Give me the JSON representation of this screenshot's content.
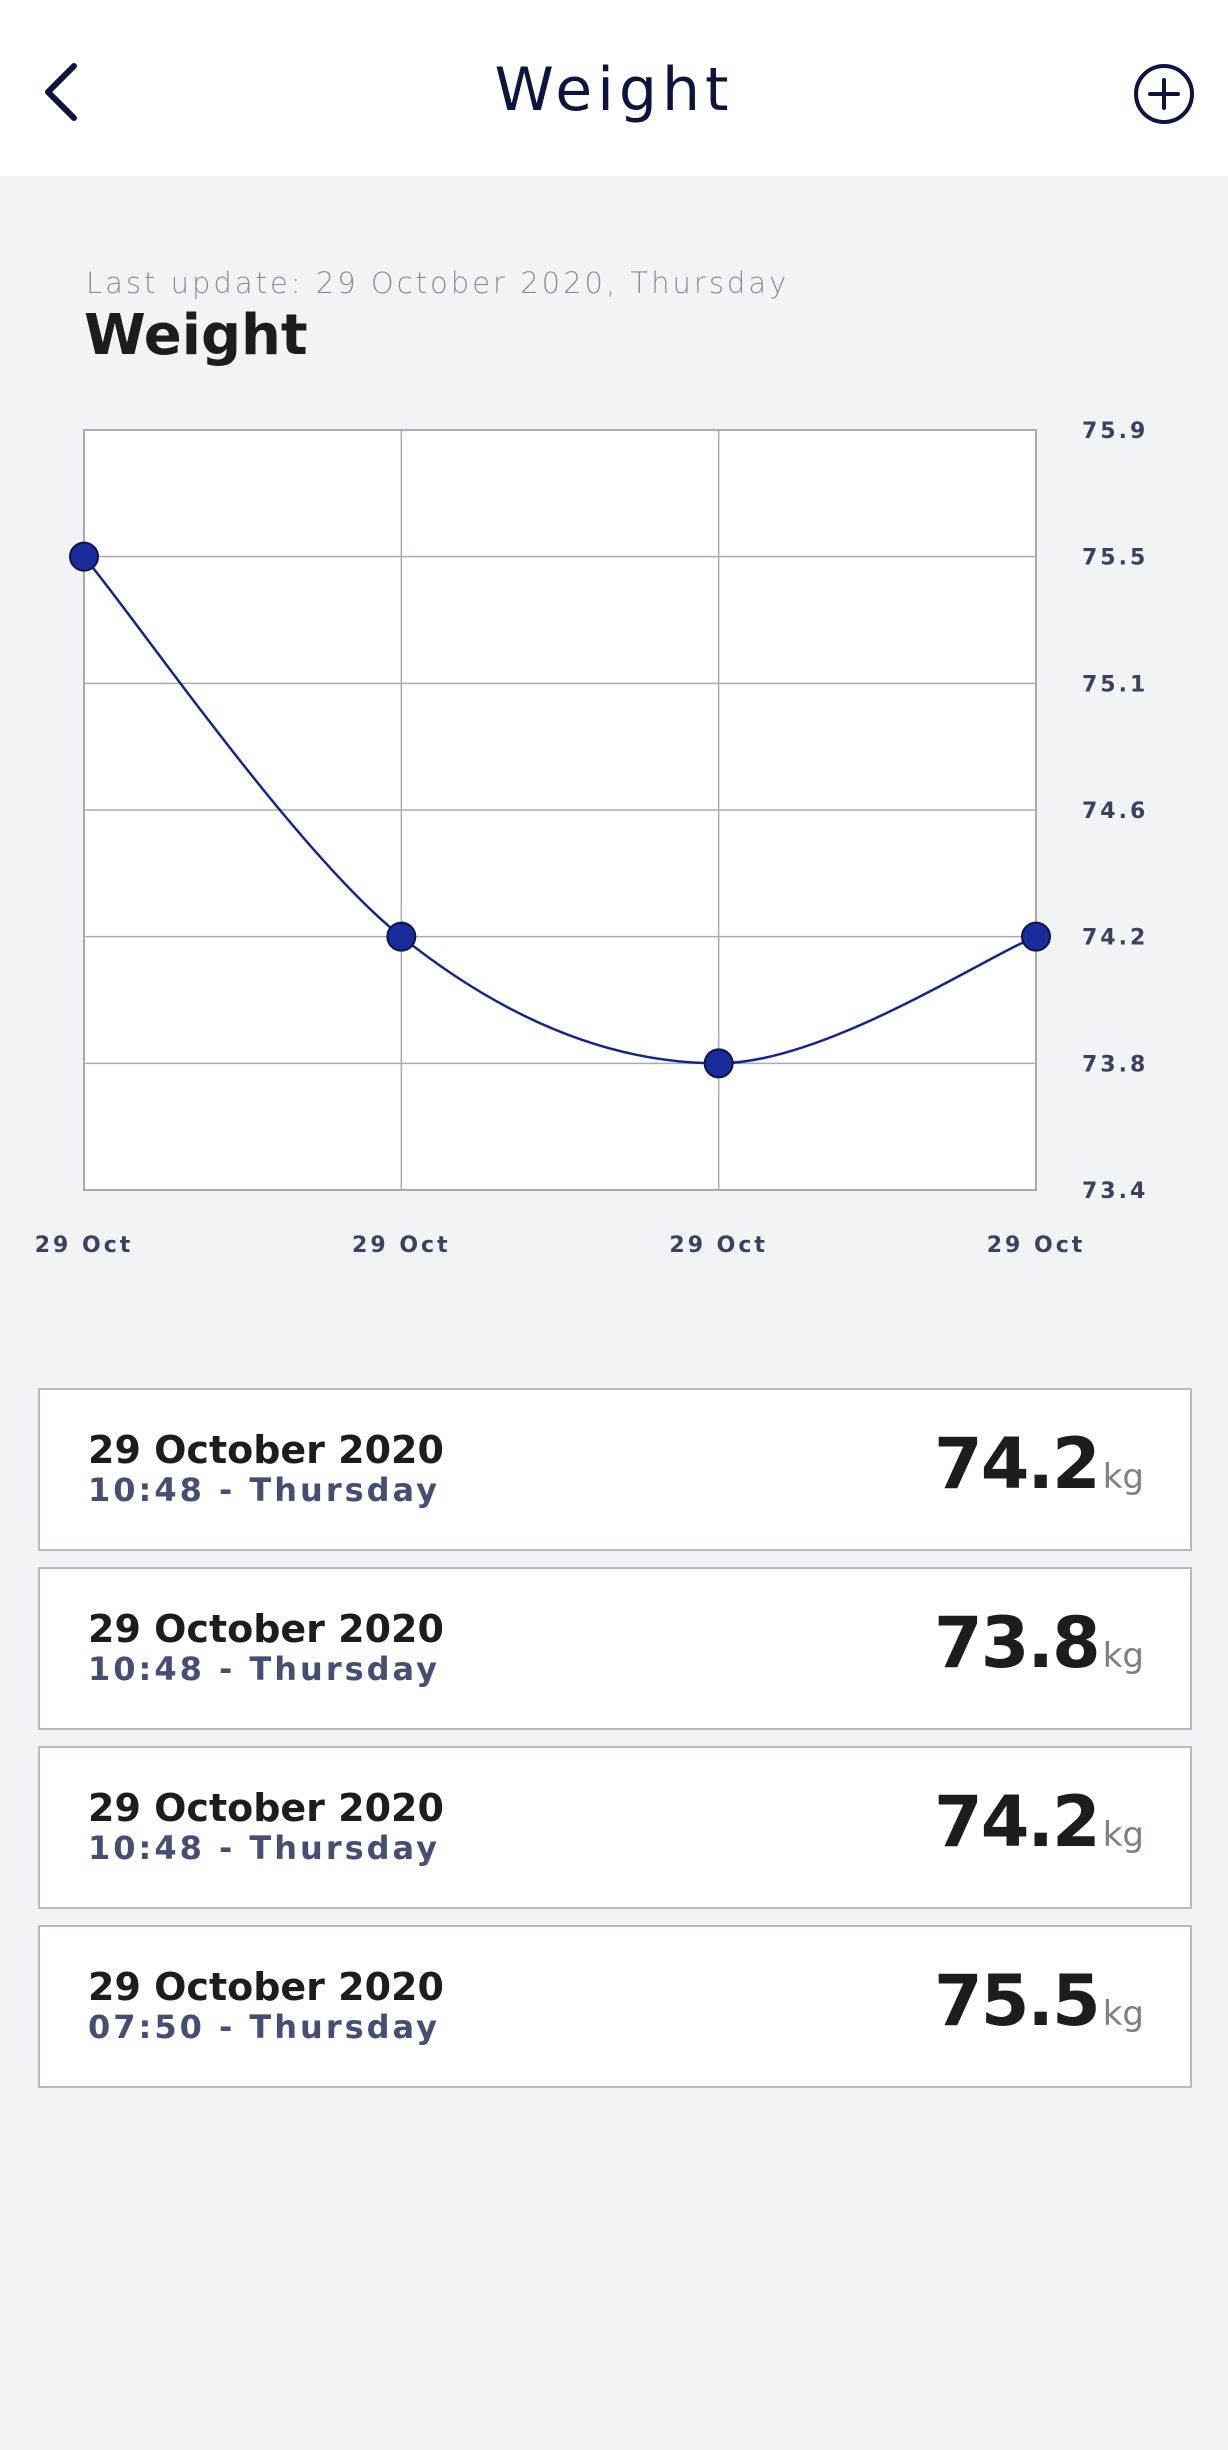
{
  "header": {
    "title": "Weight",
    "back_icon": "chevron-left-icon",
    "add_icon": "plus-circle-icon"
  },
  "summary": {
    "last_update": "Last update: 29 October 2020, Thursday",
    "title": "Weight"
  },
  "chart_data": {
    "type": "line",
    "x": [
      "29 Oct",
      "29 Oct",
      "29 Oct",
      "29 Oct"
    ],
    "series": [
      {
        "values": [
          75.5,
          74.2,
          73.8,
          74.2
        ]
      }
    ],
    "y_ticks": [
      "75.9",
      "75.5",
      "75.1",
      "74.6",
      "74.2",
      "73.8",
      "73.4"
    ],
    "ylim": [
      73.4,
      75.9
    ],
    "y_axis_side": "right",
    "grid": true,
    "line_color": "#14248f",
    "point_color": "#1a2b9b"
  },
  "entries": [
    {
      "date": "29 October 2020",
      "time": "10:48 - Thursday",
      "value": "74.2",
      "unit": "kg"
    },
    {
      "date": "29 October 2020",
      "time": "10:48 - Thursday",
      "value": "73.8",
      "unit": "kg"
    },
    {
      "date": "29 October 2020",
      "time": "10:48 - Thursday",
      "value": "74.2",
      "unit": "kg"
    },
    {
      "date": "29 October 2020",
      "time": "07:50 - Thursday",
      "value": "75.5",
      "unit": "kg"
    }
  ]
}
